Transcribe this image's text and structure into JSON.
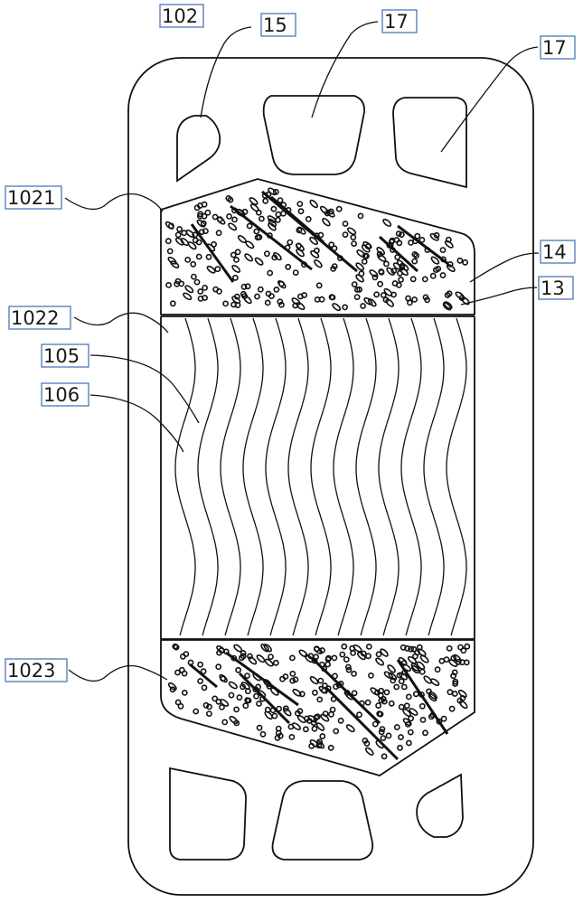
{
  "figure": {
    "labels": {
      "plate": "102",
      "port_small_top": "15",
      "port_center_top": "17",
      "port_right_top": "17",
      "upper_distribution": "1021",
      "heat_transfer_zone": "1022",
      "channel": "105",
      "corrugation": "106",
      "lower_distribution": "1023",
      "bump": "14",
      "boss": "13"
    },
    "colors": {
      "line": "#111111",
      "label_border": "#3a6fb0",
      "background": "#ffffff"
    }
  }
}
